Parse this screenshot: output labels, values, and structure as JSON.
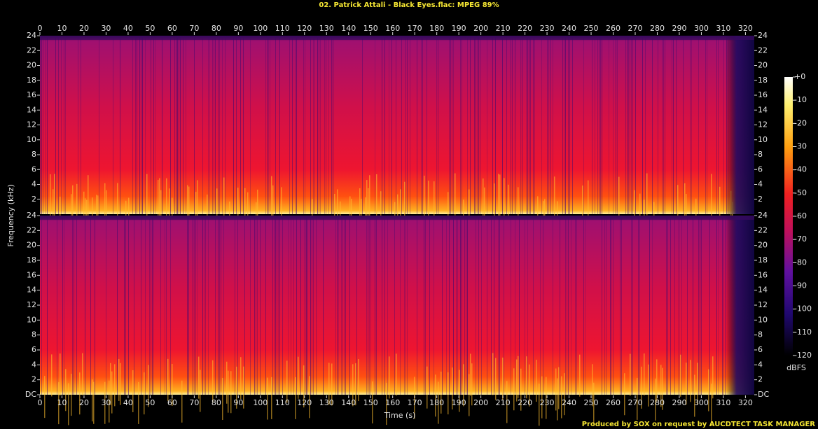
{
  "chart_data": {
    "type": "spectrogram",
    "title": "02. Patrick Attali - Black Eyes.flac: MPEG 89%",
    "xlabel": "Time (s)",
    "ylabel": "Frequency (kHz)",
    "xlim": [
      0,
      324
    ],
    "xticks": [
      0,
      10,
      20,
      30,
      40,
      50,
      60,
      70,
      80,
      90,
      100,
      110,
      120,
      130,
      140,
      150,
      160,
      170,
      180,
      190,
      200,
      210,
      220,
      230,
      240,
      250,
      260,
      270,
      280,
      290,
      300,
      310,
      320
    ],
    "channels": [
      {
        "ylim": [
          0,
          24
        ],
        "yticks": [
          2,
          4,
          6,
          8,
          10,
          12,
          14,
          16,
          18,
          20,
          22,
          24
        ]
      },
      {
        "ylim": [
          0,
          24
        ],
        "yticks": [
          {
            "value": 0,
            "label": "DC"
          },
          2,
          4,
          6,
          8,
          10,
          12,
          14,
          16,
          18,
          20,
          22,
          24
        ]
      }
    ],
    "colorbar": {
      "lim": [
        -120,
        0
      ],
      "ticks": [
        {
          "value": 0,
          "label": "+0"
        },
        -10,
        -20,
        -30,
        -40,
        -50,
        -60,
        -70,
        -80,
        -90,
        -100,
        -110,
        -120
      ],
      "label": "dBFS"
    },
    "footer": "Produced by SOX on request by AUCDTECT TASK MANAGER"
  }
}
